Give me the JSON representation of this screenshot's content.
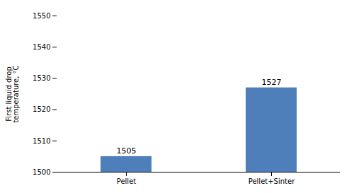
{
  "chart_data": {
    "type": "bar",
    "categories": [
      "Pellet",
      "Pellet+Sinter"
    ],
    "values": [
      1505,
      1527
    ],
    "color": "#4f7fba",
    "ylabel": "First liquid drop\ntemperature, °C",
    "ylim": [
      1500,
      1550
    ],
    "yticks": [
      1500,
      1510,
      1520,
      1530,
      1540,
      1550
    ],
    "data_labels": true,
    "grid": false
  }
}
